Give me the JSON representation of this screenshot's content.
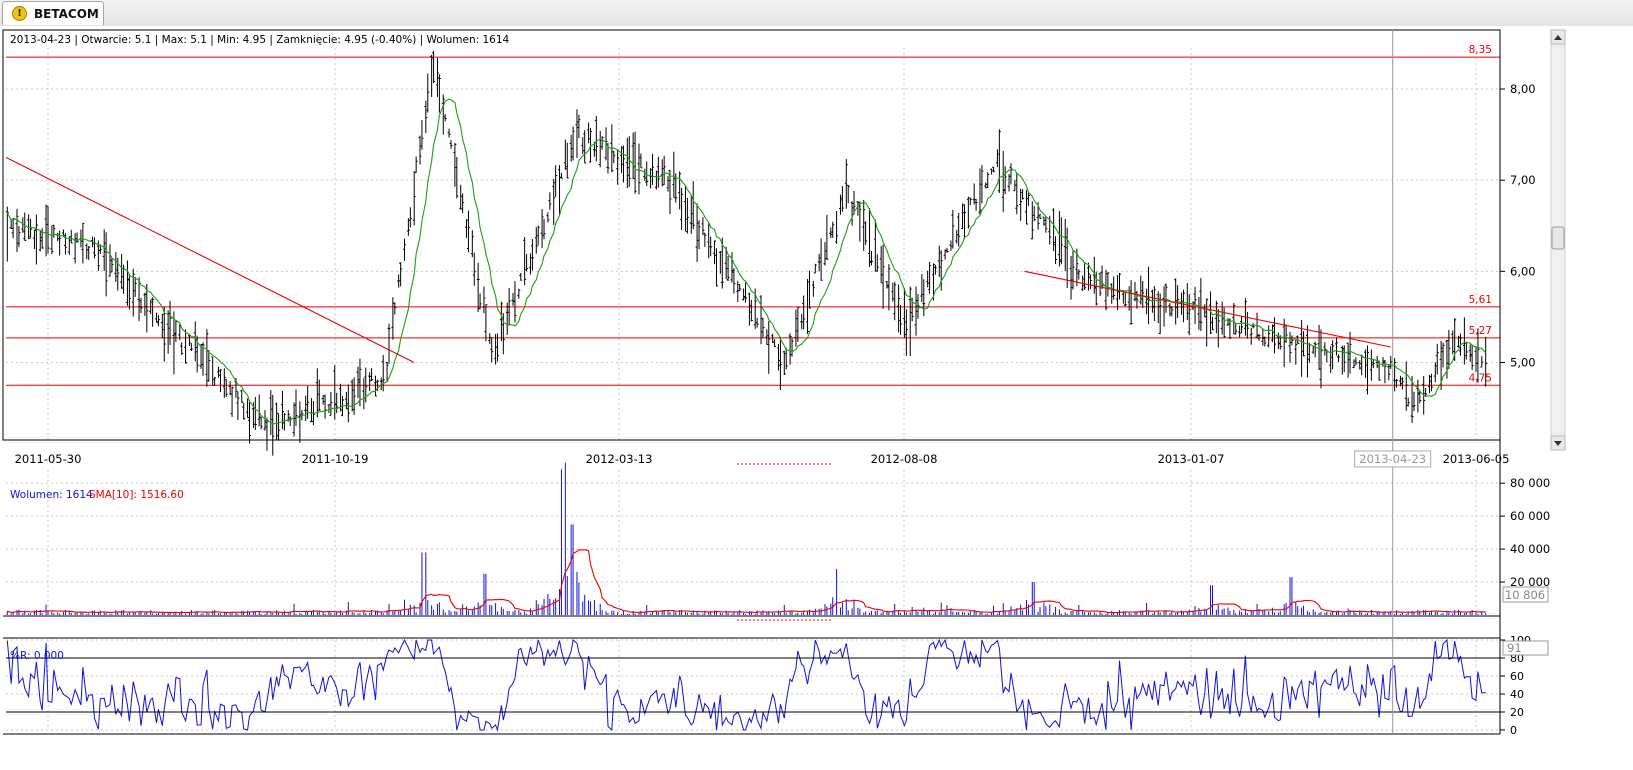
{
  "tab": {
    "label": "BETACOM",
    "icon": "warning-icon"
  },
  "info_line": "2013-04-23 | Otwarcie: 5.1 | Max: 5.1 | Min: 4.95 | Zamknięcie: 4.95 (-0.40%)  | Wolumen: 1614",
  "volume_panel": {
    "label_prefix": "Wolumen: 1614",
    "label_sma": "SMA[10]: 1516.60",
    "last_value_box": "10 806"
  },
  "wr_panel": {
    "label": "%R: 0.000",
    "last_value_box": "91"
  },
  "cursor_date_box": "2013-04-23",
  "colors": {
    "grid": "#c9c9c9",
    "price_bars": "#000000",
    "sma_price": "#1a9e1a",
    "trendline": "#ee0000",
    "hline": "#ee0000",
    "volume_bars": "#1212d8",
    "volume_sma": "#ee0000",
    "wr_line": "#1212d8",
    "cursor": "#999999"
  },
  "chart_data": [
    {
      "type": "ohlc",
      "name": "price",
      "x_tick_labels": [
        "2011-05-30",
        "2011-10-19",
        "2012-03-13",
        "2012-08-08",
        "2013-01-07",
        "2013-06-05"
      ],
      "y_tick_labels": [
        "5,00",
        "6,00",
        "7,00",
        "8,00"
      ],
      "ylim": [
        4.15,
        8.45
      ],
      "overlay": "moving average (green)",
      "horizontal_levels": [
        {
          "value": 8.35,
          "label": "8,35"
        },
        {
          "value": 5.61,
          "label": "5,61"
        },
        {
          "value": 5.27,
          "label": "5,27"
        },
        {
          "value": 4.75,
          "label": "4,75"
        }
      ],
      "trendlines": [
        {
          "from": {
            "date": "2011-04-20",
            "value": 7.25
          },
          "to": {
            "date": "2011-12-05",
            "value": 5.0
          }
        },
        {
          "from": {
            "date": "2012-10-15",
            "value": 6.0
          },
          "to": {
            "date": "2013-04-22",
            "value": 5.17
          }
        }
      ],
      "key_points": [
        {
          "date": "2011-05-02",
          "value": 6.5
        },
        {
          "date": "2011-06-20",
          "value": 6.3
        },
        {
          "date": "2011-09-20",
          "value": 4.3
        },
        {
          "date": "2011-11-20",
          "value": 4.8
        },
        {
          "date": "2011-12-15",
          "value": 8.3
        },
        {
          "date": "2012-01-15",
          "value": 5.1
        },
        {
          "date": "2012-02-28",
          "value": 7.5
        },
        {
          "date": "2012-04-15",
          "value": 7.0
        },
        {
          "date": "2012-06-15",
          "value": 5.0
        },
        {
          "date": "2012-07-15",
          "value": 6.9
        },
        {
          "date": "2012-08-15",
          "value": 5.4
        },
        {
          "date": "2012-10-01",
          "value": 7.2
        },
        {
          "date": "2012-11-15",
          "value": 5.9
        },
        {
          "date": "2013-01-20",
          "value": 5.5
        },
        {
          "date": "2013-03-25",
          "value": 5.1
        },
        {
          "date": "2013-04-23",
          "value": 4.95
        },
        {
          "date": "2013-05-05",
          "value": 4.55
        },
        {
          "date": "2013-05-25",
          "value": 5.25
        },
        {
          "date": "2013-06-10",
          "value": 5.0
        }
      ]
    },
    {
      "type": "bar",
      "name": "Wolumen",
      "y_tick_labels": [
        "20 000",
        "40 000",
        "60 000",
        "80 000"
      ],
      "ylim": [
        0,
        88000
      ],
      "overlay": "SMA[10] (red)",
      "key_points": [
        {
          "date": "2011-05-15",
          "value": 2000
        },
        {
          "date": "2011-12-10",
          "value": 38000
        },
        {
          "date": "2012-01-10",
          "value": 25000
        },
        {
          "date": "2012-02-20",
          "value": 80000
        },
        {
          "date": "2012-02-25",
          "value": 55000
        },
        {
          "date": "2012-07-10",
          "value": 28000
        },
        {
          "date": "2012-10-20",
          "value": 20000
        },
        {
          "date": "2013-01-20",
          "value": 18000
        },
        {
          "date": "2013-03-01",
          "value": 23000
        }
      ]
    },
    {
      "type": "line",
      "name": "%R",
      "y_tick_labels": [
        "0",
        "20",
        "40",
        "60",
        "80",
        "100"
      ],
      "ylim": [
        0,
        100
      ],
      "reference_lines": [
        20,
        80
      ]
    }
  ]
}
